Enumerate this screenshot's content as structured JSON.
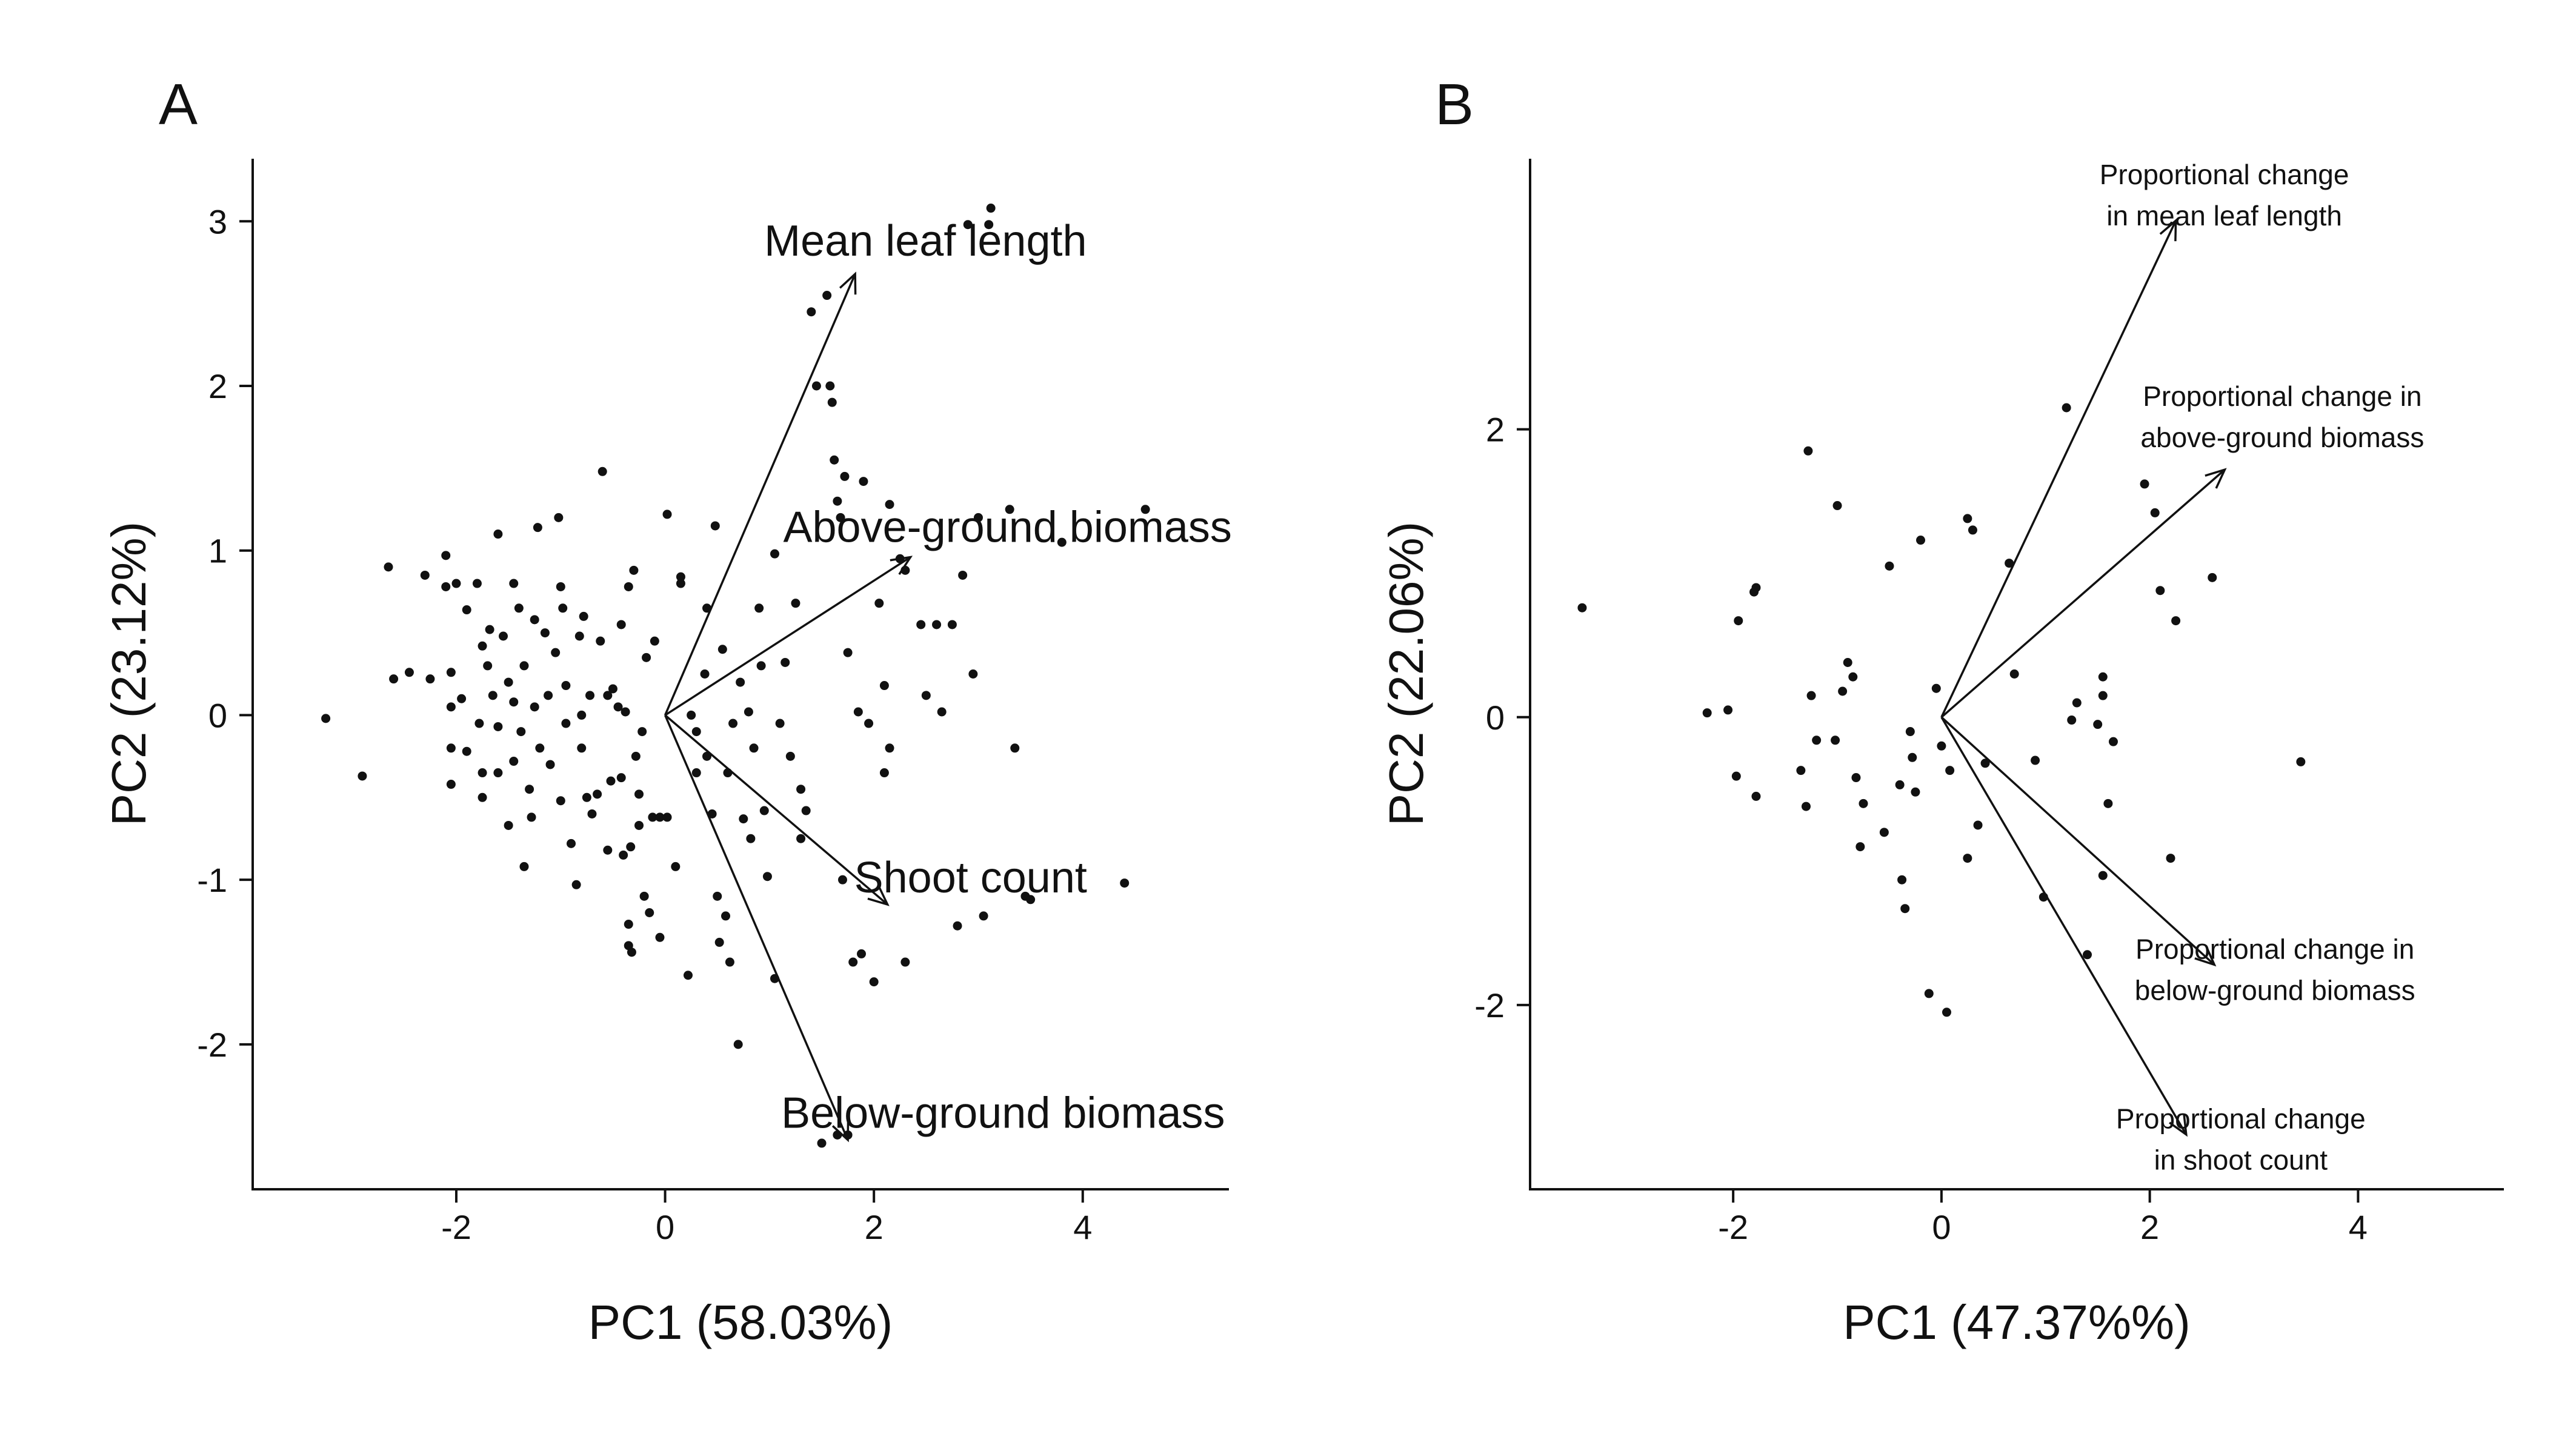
{
  "chart_data": [
    {
      "panel": "A",
      "type": "scatter",
      "subtype": "pca-biplot",
      "xlabel": "PC1 (58.03%)",
      "ylabel": "PC2 (23.12%)",
      "xlim": [
        -3.95,
        5.4
      ],
      "ylim": [
        -2.88,
        3.38
      ],
      "xticks": [
        -2,
        0,
        2,
        4
      ],
      "xtick_labels": [
        "-2",
        "0",
        "2",
        "4"
      ],
      "yticks": [
        -2,
        -1,
        0,
        1,
        2,
        3
      ],
      "ytick_labels": [
        "-2",
        "-1",
        "0",
        "1",
        "2",
        "3"
      ],
      "vectors": [
        {
          "label": "Mean leaf length",
          "x": 1.82,
          "y": 2.68
        },
        {
          "label": "Above-ground biomass",
          "x": 2.35,
          "y": 0.96
        },
        {
          "label": "Shoot count",
          "x": 2.13,
          "y": -1.15
        },
        {
          "label": "Below-ground biomass",
          "x": 1.75,
          "y": -2.58
        }
      ],
      "points": [
        [
          -3.25,
          -0.02
        ],
        [
          -2.9,
          -0.37
        ],
        [
          -2.65,
          0.9
        ],
        [
          -2.6,
          0.22
        ],
        [
          -2.45,
          0.26
        ],
        [
          -2.3,
          0.85
        ],
        [
          -2.25,
          0.22
        ],
        [
          -2.1,
          0.97
        ],
        [
          -2.1,
          0.78
        ],
        [
          -2.0,
          0.8
        ],
        [
          -2.05,
          0.26
        ],
        [
          -2.05,
          0.05
        ],
        [
          -2.05,
          -0.2
        ],
        [
          -2.05,
          -0.42
        ],
        [
          -1.9,
          0.64
        ],
        [
          -1.95,
          0.1
        ],
        [
          -1.9,
          -0.22
        ],
        [
          -1.8,
          0.8
        ],
        [
          -1.75,
          0.42
        ],
        [
          -1.78,
          -0.05
        ],
        [
          -1.75,
          -0.35
        ],
        [
          -1.75,
          -0.5
        ],
        [
          -1.7,
          0.3
        ],
        [
          -1.68,
          0.52
        ],
        [
          -1.65,
          0.12
        ],
        [
          -1.6,
          1.1
        ],
        [
          -1.6,
          -0.07
        ],
        [
          -1.6,
          -0.35
        ],
        [
          -1.55,
          0.48
        ],
        [
          -1.5,
          0.2
        ],
        [
          -1.5,
          -0.67
        ],
        [
          -1.45,
          0.8
        ],
        [
          -1.45,
          0.08
        ],
        [
          -1.45,
          -0.28
        ],
        [
          -1.4,
          0.65
        ],
        [
          -1.38,
          -0.1
        ],
        [
          -1.35,
          0.3
        ],
        [
          -1.3,
          -0.45
        ],
        [
          -1.28,
          -0.62
        ],
        [
          -1.25,
          0.58
        ],
        [
          -1.25,
          0.05
        ],
        [
          -1.22,
          1.14
        ],
        [
          -1.2,
          -0.2
        ],
        [
          -1.15,
          0.5
        ],
        [
          -1.12,
          0.12
        ],
        [
          -1.1,
          -0.3
        ],
        [
          -1.05,
          0.38
        ],
        [
          -1.02,
          1.2
        ],
        [
          -1.0,
          -0.52
        ],
        [
          -1.35,
          -0.92
        ],
        [
          -1.0,
          0.78
        ],
        [
          -0.98,
          0.65
        ],
        [
          -0.95,
          0.18
        ],
        [
          -0.95,
          -0.05
        ],
        [
          -0.9,
          -0.78
        ],
        [
          -0.85,
          -1.03
        ],
        [
          -0.82,
          0.48
        ],
        [
          -0.8,
          0.0
        ],
        [
          -0.8,
          -0.2
        ],
        [
          -0.78,
          0.6
        ],
        [
          -0.75,
          -0.5
        ],
        [
          -0.72,
          0.12
        ],
        [
          -0.7,
          -0.6
        ],
        [
          -0.65,
          -0.48
        ],
        [
          -0.62,
          0.45
        ],
        [
          -0.6,
          1.48
        ],
        [
          -0.55,
          -0.82
        ],
        [
          -0.55,
          0.12
        ],
        [
          -0.52,
          -0.4
        ],
        [
          -0.5,
          0.16
        ],
        [
          -0.45,
          0.05
        ],
        [
          -0.42,
          0.55
        ],
        [
          -0.42,
          -0.38
        ],
        [
          -0.4,
          -0.85
        ],
        [
          -0.38,
          0.02
        ],
        [
          -0.35,
          -1.27
        ],
        [
          -0.35,
          0.78
        ],
        [
          -0.35,
          -1.4
        ],
        [
          -0.33,
          -0.8
        ],
        [
          -0.32,
          -1.44
        ],
        [
          -0.3,
          0.88
        ],
        [
          -0.28,
          -0.25
        ],
        [
          -0.25,
          -0.67
        ],
        [
          -0.25,
          -0.48
        ],
        [
          -0.22,
          -0.1
        ],
        [
          -0.2,
          -1.1
        ],
        [
          -0.18,
          0.35
        ],
        [
          -0.15,
          -1.2
        ],
        [
          -0.12,
          -0.62
        ],
        [
          -0.1,
          0.45
        ],
        [
          -0.05,
          -0.62
        ],
        [
          -0.05,
          -1.35
        ],
        [
          0.02,
          -0.62
        ],
        [
          0.02,
          1.22
        ],
        [
          0.1,
          -0.92
        ],
        [
          0.15,
          0.84
        ],
        [
          0.15,
          0.8
        ],
        [
          0.22,
          -1.58
        ],
        [
          0.25,
          0.0
        ],
        [
          0.3,
          -0.1
        ],
        [
          0.3,
          -0.35
        ],
        [
          0.38,
          0.25
        ],
        [
          0.4,
          0.65
        ],
        [
          0.4,
          -0.25
        ],
        [
          0.45,
          -0.6
        ],
        [
          0.48,
          1.15
        ],
        [
          0.5,
          -1.1
        ],
        [
          0.52,
          -1.38
        ],
        [
          0.55,
          0.4
        ],
        [
          0.58,
          -1.22
        ],
        [
          0.6,
          -0.35
        ],
        [
          0.62,
          -1.5
        ],
        [
          0.65,
          -0.05
        ],
        [
          0.7,
          -2.0
        ],
        [
          0.72,
          0.2
        ],
        [
          0.75,
          -0.63
        ],
        [
          0.8,
          0.02
        ],
        [
          0.82,
          -0.75
        ],
        [
          0.85,
          -0.2
        ],
        [
          0.9,
          0.65
        ],
        [
          0.92,
          0.3
        ],
        [
          0.95,
          -0.58
        ],
        [
          0.98,
          -0.98
        ],
        [
          1.05,
          -1.6
        ],
        [
          1.05,
          0.98
        ],
        [
          1.1,
          -0.05
        ],
        [
          1.15,
          0.32
        ],
        [
          1.2,
          -0.25
        ],
        [
          1.25,
          0.68
        ],
        [
          1.3,
          -0.45
        ],
        [
          1.3,
          -0.75
        ],
        [
          1.35,
          -0.58
        ],
        [
          1.4,
          2.45
        ],
        [
          1.45,
          2.0
        ],
        [
          1.55,
          2.55
        ],
        [
          1.58,
          2.0
        ],
        [
          1.6,
          1.9
        ],
        [
          1.62,
          1.55
        ],
        [
          1.65,
          1.3
        ],
        [
          1.68,
          1.2
        ],
        [
          1.7,
          -1.0
        ],
        [
          1.72,
          1.45
        ],
        [
          1.75,
          0.38
        ],
        [
          1.8,
          -1.5
        ],
        [
          1.85,
          0.02
        ],
        [
          1.88,
          -1.45
        ],
        [
          1.95,
          -0.05
        ],
        [
          1.5,
          -2.6
        ],
        [
          1.65,
          -2.55
        ],
        [
          1.75,
          -2.55
        ],
        [
          1.9,
          1.42
        ],
        [
          2.0,
          -1.62
        ],
        [
          2.05,
          0.68
        ],
        [
          2.1,
          0.18
        ],
        [
          2.15,
          -0.2
        ],
        [
          2.1,
          -0.35
        ],
        [
          2.15,
          1.28
        ],
        [
          2.25,
          0.95
        ],
        [
          2.3,
          0.88
        ],
        [
          2.3,
          -1.5
        ],
        [
          2.45,
          0.55
        ],
        [
          2.5,
          0.12
        ],
        [
          2.6,
          0.55
        ],
        [
          2.65,
          0.02
        ],
        [
          2.75,
          0.55
        ],
        [
          2.8,
          -1.28
        ],
        [
          2.85,
          0.85
        ],
        [
          2.95,
          0.25
        ],
        [
          3.0,
          1.2
        ],
        [
          3.05,
          -1.22
        ],
        [
          3.3,
          1.25
        ],
        [
          3.35,
          -0.2
        ],
        [
          3.45,
          -1.1
        ],
        [
          3.5,
          -1.12
        ],
        [
          3.8,
          1.05
        ],
        [
          4.4,
          -1.02
        ],
        [
          4.6,
          1.25
        ],
        [
          3.1,
          2.98
        ],
        [
          3.12,
          3.08
        ],
        [
          2.9,
          2.98
        ]
      ]
    },
    {
      "panel": "B",
      "type": "scatter",
      "subtype": "pca-biplot",
      "xlabel": "PC1 (47.37%%)",
      "ylabel": "PC2 (22.06%)",
      "xlim": [
        -3.95,
        5.4
      ],
      "ylim": [
        -3.28,
        3.88
      ],
      "xticks": [
        -2,
        0,
        2,
        4
      ],
      "xtick_labels": [
        "-2",
        "0",
        "2",
        "4"
      ],
      "yticks": [
        -2,
        0,
        2
      ],
      "ytick_labels": [
        "-2",
        "0",
        "2"
      ],
      "vectors": [
        {
          "label_lines": [
            "Proportional change",
            "in mean leaf length"
          ],
          "x": 2.25,
          "y": 3.45
        },
        {
          "label_lines": [
            "Proportional change in",
            "above-ground biomass"
          ],
          "x": 2.72,
          "y": 1.72
        },
        {
          "label_lines": [
            "Proportional change in",
            "below-ground biomass"
          ],
          "x": 2.62,
          "y": -1.72
        },
        {
          "label_lines": [
            "Proportional change",
            "in shoot count"
          ],
          "x": 2.35,
          "y": -2.9
        }
      ],
      "points": [
        [
          -3.45,
          0.76
        ],
        [
          -2.25,
          0.03
        ],
        [
          -2.05,
          0.05
        ],
        [
          -1.97,
          -0.41
        ],
        [
          -1.95,
          0.67
        ],
        [
          -1.8,
          0.87
        ],
        [
          -1.78,
          0.9
        ],
        [
          -1.78,
          -0.55
        ],
        [
          -1.35,
          -0.37
        ],
        [
          -1.3,
          -0.62
        ],
        [
          -1.28,
          1.85
        ],
        [
          -1.25,
          0.15
        ],
        [
          -1.2,
          -0.16
        ],
        [
          -1.0,
          1.47
        ],
        [
          -1.02,
          -0.16
        ],
        [
          -0.95,
          0.18
        ],
        [
          -0.9,
          0.38
        ],
        [
          -0.85,
          0.28
        ],
        [
          -0.82,
          -0.42
        ],
        [
          -0.78,
          -0.9
        ],
        [
          -0.75,
          -0.6
        ],
        [
          -0.55,
          -0.8
        ],
        [
          -0.5,
          1.05
        ],
        [
          -0.4,
          -0.47
        ],
        [
          -0.38,
          -1.13
        ],
        [
          -0.35,
          -1.33
        ],
        [
          -0.3,
          -0.1
        ],
        [
          -0.28,
          -0.28
        ],
        [
          -0.25,
          -0.52
        ],
        [
          -0.2,
          1.23
        ],
        [
          -0.12,
          -1.92
        ],
        [
          -0.05,
          0.2
        ],
        [
          0.0,
          -0.2
        ],
        [
          0.05,
          -2.05
        ],
        [
          0.08,
          -0.37
        ],
        [
          0.25,
          1.38
        ],
        [
          0.25,
          -0.98
        ],
        [
          0.3,
          1.3
        ],
        [
          0.35,
          -0.75
        ],
        [
          0.42,
          -0.32
        ],
        [
          0.65,
          1.07
        ],
        [
          0.7,
          0.3
        ],
        [
          0.9,
          -0.3
        ],
        [
          0.98,
          -1.25
        ],
        [
          1.2,
          2.15
        ],
        [
          1.25,
          -0.02
        ],
        [
          1.3,
          0.1
        ],
        [
          1.4,
          -1.65
        ],
        [
          1.5,
          -0.05
        ],
        [
          1.55,
          0.28
        ],
        [
          1.55,
          0.15
        ],
        [
          1.55,
          -1.1
        ],
        [
          1.6,
          -0.6
        ],
        [
          1.65,
          -0.17
        ],
        [
          1.95,
          1.62
        ],
        [
          2.05,
          1.42
        ],
        [
          2.1,
          0.88
        ],
        [
          2.2,
          -0.98
        ],
        [
          2.25,
          0.67
        ],
        [
          2.6,
          0.97
        ],
        [
          3.45,
          -0.31
        ]
      ]
    }
  ]
}
